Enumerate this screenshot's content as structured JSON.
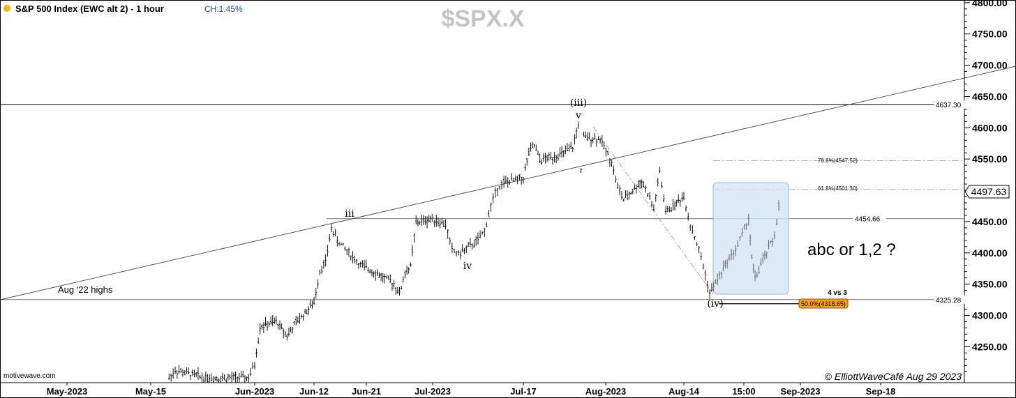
{
  "header": {
    "title": "S&P 500 Index (EWC alt 2) - 1 hour",
    "change": "CH:1.45%",
    "symbol": "$SPX.X",
    "status_dot_color": "#f5b800"
  },
  "footer": {
    "source": "motivewave.com",
    "copyright": "© ElliottWaveCafé Aug 29 2023"
  },
  "chart_data": {
    "type": "ohlc",
    "title": "S&P 500 Index (EWC alt 2) - 1 hour",
    "y_axis": {
      "range": [
        4200,
        4820
      ],
      "ticks": [
        4250,
        4300,
        4350,
        4400,
        4450,
        4500,
        4550,
        4600,
        4650,
        4700,
        4750,
        4800
      ],
      "tick_labels": [
        "4250.00",
        "4300.00",
        "4350.00",
        "4400.00",
        "4450.00",
        "4500.00",
        "4550.00",
        "4600.00",
        "4650.00",
        "4700.00",
        "4750.00",
        "4800.00"
      ],
      "position": "right"
    },
    "x_axis": {
      "labels": [
        "May-2023",
        "May-15",
        "Jun-2023",
        "Jun-12",
        "Jun-21",
        "Jul-2023",
        "Jul-17",
        "Aug-2023",
        "Aug-14",
        "15:00",
        "Sep-2023",
        "Sep-18"
      ]
    },
    "last_price": "4497.63",
    "series": [
      {
        "kind": "price_path",
        "points": [
          [
            "May-18",
            4200
          ],
          [
            "May-19",
            4212
          ],
          [
            "May-24",
            4200
          ],
          [
            "May-31",
            4200
          ],
          [
            "Jun-1",
            4222
          ],
          [
            "Jun-2",
            4282
          ],
          [
            "Jun-5",
            4290
          ],
          [
            "Jun-7",
            4268
          ],
          [
            "Jun-9",
            4292
          ],
          [
            "Jun-12",
            4320
          ],
          [
            "Jun-13",
            4372
          ],
          [
            "Jun-14",
            4385
          ],
          [
            "Jun-15",
            4440
          ],
          [
            "Jun-16",
            4420
          ],
          [
            "Jun-20",
            4380
          ],
          [
            "Jun-22",
            4372
          ],
          [
            "Jun-26",
            4350
          ],
          [
            "Jun-27",
            4335
          ],
          [
            "Jun-28",
            4368
          ],
          [
            "Jun-29",
            4378
          ],
          [
            "Jun-30",
            4448
          ],
          [
            "Jul-3",
            4455
          ],
          [
            "Jul-5",
            4445
          ],
          [
            "Jul-6",
            4405
          ],
          [
            "Jul-7",
            4398
          ],
          [
            "Jul-10",
            4420
          ],
          [
            "Jul-11",
            4435
          ],
          [
            "Jul-12",
            4475
          ],
          [
            "Jul-13",
            4505
          ],
          [
            "Jul-14",
            4512
          ],
          [
            "Jul-17",
            4520
          ],
          [
            "Jul-18",
            4560
          ],
          [
            "Jul-19",
            4572
          ],
          [
            "Jul-20",
            4548
          ],
          [
            "Jul-24",
            4558
          ],
          [
            "Jul-26",
            4568
          ],
          [
            "Jul-27",
            4605
          ],
          [
            "Jul-27b",
            4530
          ],
          [
            "Jul-28",
            4585
          ],
          [
            "Jul-31",
            4582
          ],
          [
            "Aug-2",
            4545
          ],
          [
            "Aug-3",
            4505
          ],
          [
            "Aug-4",
            4485
          ],
          [
            "Aug-7",
            4515
          ],
          [
            "Aug-8",
            4495
          ],
          [
            "Aug-9",
            4470
          ],
          [
            "Aug-10",
            4530
          ],
          [
            "Aug-11",
            4465
          ],
          [
            "Aug-14",
            4490
          ],
          [
            "Aug-15",
            4445
          ],
          [
            "Aug-16",
            4415
          ],
          [
            "Aug-17",
            4380
          ],
          [
            "Aug-18",
            4335
          ],
          [
            "Aug-21",
            4392
          ],
          [
            "Aug-22",
            4405
          ],
          [
            "Aug-23",
            4430
          ],
          [
            "Aug-24",
            4455
          ],
          [
            "Aug-24b",
            4390
          ],
          [
            "Aug-25",
            4360
          ],
          [
            "Aug-28",
            4428
          ],
          [
            "Aug-29",
            4497.63
          ]
        ]
      }
    ],
    "horizontal_levels": [
      {
        "value": 4637.3,
        "label": "4637.30"
      },
      {
        "value": 4454.66,
        "label": "4454.66"
      },
      {
        "value": 4325.28,
        "label": "4325.28"
      }
    ],
    "fib_levels": [
      {
        "label": "78.6%(4547.52)",
        "value": 4547.52
      },
      {
        "label": "61.8%(4501.30)",
        "value": 4501.3
      },
      {
        "label": "50.0%(4318.65)",
        "value": 4318.65,
        "highlight_color": "#f7a21b"
      }
    ],
    "wave_labels": [
      "iii",
      "iv",
      "(iii)",
      "v",
      "(iv)"
    ],
    "annotations": [
      "Aug '22 highs",
      "abc or 1,2 ?",
      "4 vs 3"
    ],
    "target_box_color": "#cfe3f2"
  }
}
